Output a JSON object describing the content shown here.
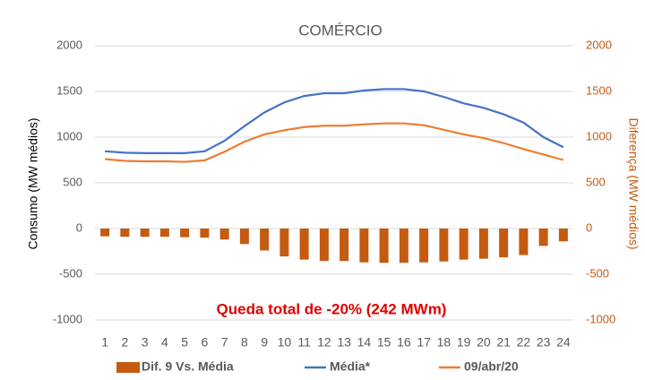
{
  "chart_data": {
    "type": "bar-line",
    "title": "COMÉRCIO",
    "y_label": "Consumo (MW médios)",
    "y2_label": "Diferença (MW médios)",
    "annotation": "Queda total de -20% (242 MWm)",
    "categories": [
      "1",
      "2",
      "3",
      "4",
      "5",
      "6",
      "7",
      "8",
      "9",
      "10",
      "11",
      "12",
      "13",
      "14",
      "15",
      "16",
      "17",
      "18",
      "19",
      "20",
      "21",
      "22",
      "23",
      "24"
    ],
    "series": [
      {
        "name": "Dif. 9 Vs. Média",
        "color": "#c55a11",
        "kind": "bar",
        "axis": "y2",
        "values": [
          -85,
          -90,
          -90,
          -90,
          -95,
          -100,
          -120,
          -170,
          -240,
          -305,
          -340,
          -355,
          -355,
          -370,
          -375,
          -375,
          -370,
          -360,
          -340,
          -330,
          -315,
          -290,
          -190,
          -140
        ]
      },
      {
        "name": "Média*",
        "color": "#4472c4",
        "kind": "line",
        "values": [
          845,
          830,
          825,
          825,
          825,
          845,
          960,
          1120,
          1270,
          1380,
          1450,
          1480,
          1480,
          1510,
          1525,
          1525,
          1500,
          1440,
          1370,
          1320,
          1250,
          1160,
          1000,
          890
        ]
      },
      {
        "name": "09/abr/20",
        "color": "#ed7d31",
        "kind": "line",
        "values": [
          760,
          740,
          735,
          735,
          730,
          745,
          840,
          950,
          1030,
          1075,
          1110,
          1125,
          1125,
          1140,
          1150,
          1150,
          1130,
          1080,
          1030,
          990,
          935,
          870,
          810,
          750
        ]
      }
    ],
    "ylim": [
      -1000,
      2000
    ],
    "yticks": [
      -1000,
      -500,
      0,
      500,
      1000,
      1500,
      2000
    ],
    "y2lim": [
      -1000,
      2000
    ],
    "y2ticks": [
      -1000,
      -500,
      0,
      500,
      1000,
      1500,
      2000
    ],
    "grid": true
  }
}
